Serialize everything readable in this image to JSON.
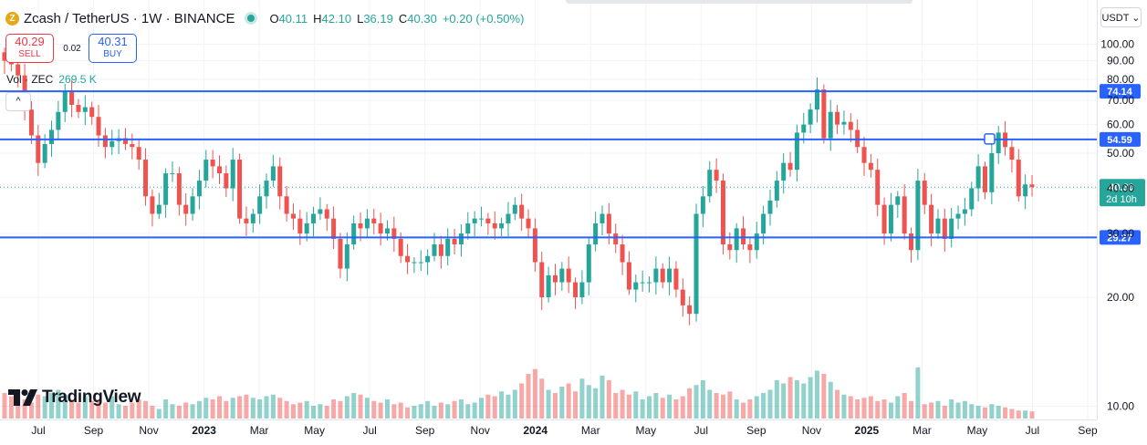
{
  "header": {
    "symbol": "Zcash / TetherUS · 1W · BINANCE",
    "coin_icon": "Z",
    "ohlc": [
      {
        "k": "O",
        "v": "40.11"
      },
      {
        "k": "H",
        "v": "42.10"
      },
      {
        "k": "L",
        "v": "36.19"
      },
      {
        "k": "C",
        "v": "40.30"
      },
      {
        "k": "",
        "v": "+0.20 (+0.50%)"
      }
    ]
  },
  "trade": {
    "sell_price": "40.29",
    "sell_label": "SELL",
    "spread": "0.02",
    "buy_price": "40.31",
    "buy_label": "BUY"
  },
  "volume": {
    "label": "Vol · ZEC",
    "value": "269.5 K"
  },
  "collapse_icon": "^",
  "currency_button": "USDT ⌄",
  "watermark": "TradingView",
  "colors": {
    "up": "#26a69a",
    "down": "#ef5350",
    "hline": "#2962ff",
    "last": "#26a69a"
  },
  "chart_data": {
    "type": "candlestick",
    "interval": "1W",
    "ylim": [
      8,
      106
    ],
    "y_ticks": [
      10,
      20,
      30,
      40,
      50,
      60,
      70,
      80,
      90,
      100
    ],
    "y_tick_labels": [
      "10.00",
      "20.00",
      "30.00",
      "40.00",
      "50.00",
      "60.00",
      "70.00",
      "80.00",
      "90.00",
      "100.00"
    ],
    "x_tick_labels": [
      "Jul",
      "Sep",
      "Nov",
      "2023",
      "Mar",
      "May",
      "Jul",
      "Sep",
      "Nov",
      "2024",
      "Mar",
      "May",
      "Jul",
      "Sep",
      "Nov",
      "2025",
      "Mar",
      "May",
      "Jul",
      "Sep"
    ],
    "horizontal_levels": [
      {
        "value": 74.14,
        "label": "74.14"
      },
      {
        "value": 54.59,
        "label": "54.59"
      },
      {
        "value": 29.27,
        "label": "29.27"
      }
    ],
    "last_price": {
      "value": 40.3,
      "label": "40.30",
      "countdown": "2d 10h"
    },
    "marker_value": 54.59,
    "closes": [
      90,
      88,
      82,
      66,
      56,
      47,
      53,
      58,
      65,
      74,
      68,
      65,
      67,
      63,
      56,
      52,
      54,
      55,
      53,
      52,
      48,
      38,
      34,
      36,
      44,
      44,
      36,
      34,
      38,
      42,
      48,
      46,
      44,
      40,
      48,
      33,
      32,
      34,
      38,
      42,
      46,
      38,
      34,
      33,
      30,
      32,
      34,
      35,
      33,
      29,
      24,
      28,
      32,
      31,
      33,
      32,
      30,
      31,
      29,
      26,
      25,
      25,
      25,
      26,
      28,
      26,
      29,
      28,
      30,
      32,
      33,
      33,
      32,
      31,
      32,
      34,
      36,
      33,
      31,
      25,
      20,
      23,
      22,
      24,
      22,
      20,
      22,
      28,
      32,
      34,
      30,
      28,
      25,
      21,
      22,
      22,
      22,
      24,
      22,
      24,
      21,
      19,
      18,
      34,
      38,
      45,
      42,
      28,
      27,
      31,
      28,
      27,
      30,
      34,
      37,
      42,
      47,
      45,
      57,
      60,
      66,
      75,
      55,
      65,
      60,
      61,
      58,
      52,
      47,
      45,
      36,
      30,
      36,
      38,
      30,
      27,
      42,
      36,
      30,
      33,
      29,
      33,
      34,
      35,
      40,
      46,
      39,
      50,
      57,
      52,
      48,
      38,
      41,
      40.3
    ],
    "volumes": [
      16,
      14,
      18,
      12,
      10,
      15,
      14,
      16,
      18,
      15,
      12,
      10,
      14,
      11,
      12,
      10,
      14,
      9,
      8,
      10,
      12,
      11,
      8,
      6,
      12,
      9,
      8,
      10,
      9,
      11,
      13,
      12,
      14,
      11,
      13,
      14,
      15,
      13,
      12,
      14,
      15,
      13,
      11,
      9,
      10,
      11,
      8,
      9,
      8,
      12,
      11,
      14,
      16,
      15,
      13,
      11,
      10,
      12,
      9,
      10,
      7,
      8,
      9,
      11,
      8,
      10,
      9,
      11,
      12,
      9,
      10,
      13,
      15,
      14,
      17,
      15,
      18,
      22,
      28,
      31,
      25,
      18,
      16,
      20,
      22,
      17,
      25,
      21,
      19,
      27,
      24,
      16,
      18,
      15,
      17,
      12,
      14,
      16,
      13,
      15,
      12,
      14,
      19,
      21,
      24,
      18,
      16,
      15,
      17,
      12,
      10,
      12,
      14,
      16,
      18,
      24,
      22,
      26,
      24,
      22,
      26,
      30,
      28,
      23,
      18,
      15,
      14,
      12,
      13,
      14,
      11,
      12,
      10,
      14,
      16,
      11,
      32,
      9,
      10,
      11,
      8,
      12,
      10,
      11,
      9,
      8,
      7,
      9,
      8,
      7,
      6,
      5,
      5,
      4.5
    ]
  }
}
